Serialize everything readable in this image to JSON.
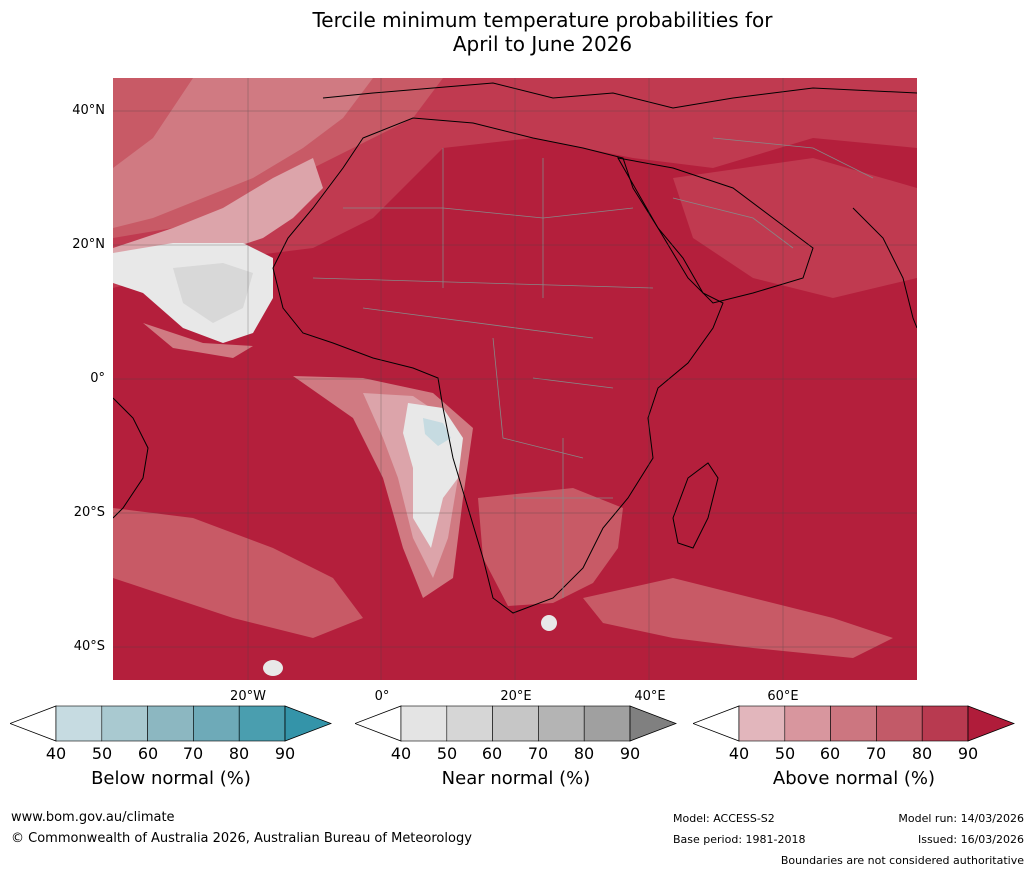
{
  "title": {
    "line1": "Tercile minimum temperature probabilities for",
    "line2": "April to June 2026"
  },
  "map": {
    "lat_labels": [
      "40°N",
      "20°N",
      "0°",
      "20°S",
      "40°S"
    ],
    "lon_labels": [
      "20°W",
      "0°",
      "20°E",
      "40°E",
      "60°E"
    ],
    "colors": {
      "above_90": "#b41f3c",
      "above_80": "#c03a50",
      "above_70": "#c85a66",
      "above_60": "#d07a82",
      "above_50": "#dca4aa",
      "near_40": "#e8e8e8",
      "near_50": "#d8d8d8",
      "below_40": "#c6dbe1",
      "land_border": "#888888",
      "coast": "#000000",
      "grid": "#444444"
    }
  },
  "colorbars": [
    {
      "label": "Below normal (%)",
      "ticks": [
        "40",
        "50",
        "60",
        "70",
        "80",
        "90"
      ],
      "colors": [
        "#c6dbe1",
        "#a9c9d0",
        "#8cb7c1",
        "#6eaab8",
        "#4a9eaf"
      ],
      "low_color": "#ffffff",
      "high_color": "#3494a9"
    },
    {
      "label": "Near normal (%)",
      "ticks": [
        "40",
        "50",
        "60",
        "70",
        "80",
        "90"
      ],
      "colors": [
        "#e4e4e4",
        "#d6d6d6",
        "#c6c6c6",
        "#b4b4b4",
        "#a0a0a0"
      ],
      "low_color": "#ffffff",
      "high_color": "#808080"
    },
    {
      "label": "Above normal (%)",
      "ticks": [
        "40",
        "50",
        "60",
        "70",
        "80",
        "90"
      ],
      "colors": [
        "#e2b6bc",
        "#d8969e",
        "#cc7680",
        "#c25a68",
        "#b83a50"
      ],
      "low_color": "#ffffff",
      "high_color": "#b01c3a"
    }
  ],
  "footer": {
    "url": "www.bom.gov.au/climate",
    "copyright": "© Commonwealth of Australia 2026, Australian Bureau of Meteorology",
    "model": "Model: ACCESS-S2",
    "base_period": "Base period: 1981-2018",
    "model_run": "Model run: 14/03/2026",
    "issued": "Issued: 16/03/2026",
    "disclaimer": "Boundaries are not considered authoritative"
  }
}
